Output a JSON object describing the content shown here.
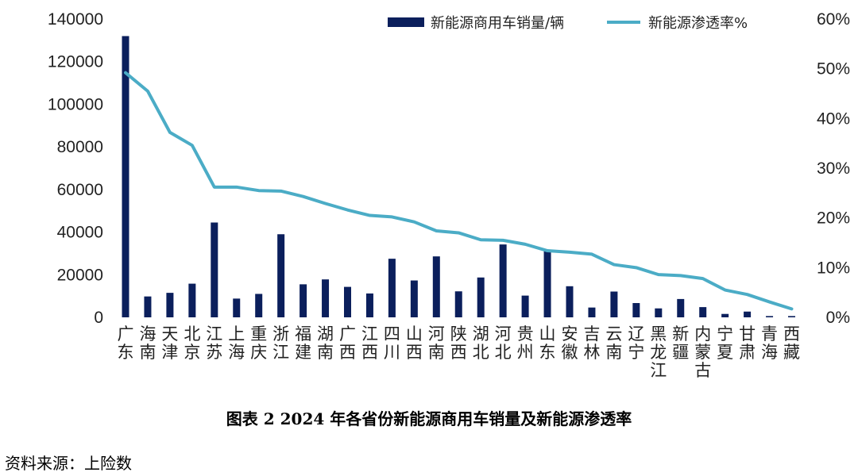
{
  "chart_data": {
    "type": "bar",
    "title": "图表 2 2024 年各省份新能源商用车销量及新能源渗透率",
    "source": "资料来源：上险数",
    "categories": [
      "广东",
      "海南",
      "天津",
      "北京",
      "江苏",
      "上海",
      "重庆",
      "浙江",
      "福建",
      "湖南",
      "广西",
      "江西",
      "四川",
      "山西",
      "河南",
      "陕西",
      "湖北",
      "河北",
      "贵州",
      "山东",
      "安徽",
      "吉林",
      "云南",
      "辽宁",
      "黑龙江",
      "新疆",
      "内蒙古",
      "宁夏",
      "甘肃",
      "青海",
      "西藏"
    ],
    "series": [
      {
        "name": "新能源商用车销量/辆",
        "type": "bar",
        "axis": "left",
        "color": "#0b1f5c",
        "values": [
          132000,
          9800,
          11500,
          15800,
          44500,
          8800,
          11000,
          39000,
          15500,
          17800,
          14300,
          11200,
          27500,
          17300,
          28600,
          12200,
          18700,
          34200,
          10200,
          31000,
          14600,
          4600,
          12100,
          6700,
          4200,
          8600,
          4800,
          1600,
          2700,
          600,
          600
        ]
      },
      {
        "name": "新能源渗透率%",
        "type": "line",
        "axis": "right",
        "color": "#4bacc6",
        "values": [
          49.2,
          45.5,
          37.2,
          34.6,
          26.2,
          26.2,
          25.5,
          25.4,
          24.3,
          22.9,
          21.6,
          20.5,
          20.2,
          19.2,
          17.4,
          17.0,
          15.6,
          15.5,
          14.7,
          13.4,
          13.1,
          12.7,
          10.6,
          10.0,
          8.6,
          8.4,
          7.8,
          5.5,
          4.6,
          3.1,
          1.7
        ]
      }
    ],
    "y_left": {
      "min": 0,
      "max": 140000,
      "ticks": [
        "0",
        "20000",
        "40000",
        "60000",
        "80000",
        "100000",
        "120000",
        "140000"
      ]
    },
    "y_right": {
      "min": 0,
      "max": 60,
      "ticks": [
        "0%",
        "10%",
        "20%",
        "30%",
        "40%",
        "50%",
        "60%"
      ]
    },
    "legend_position": "top-right",
    "grid": false
  }
}
